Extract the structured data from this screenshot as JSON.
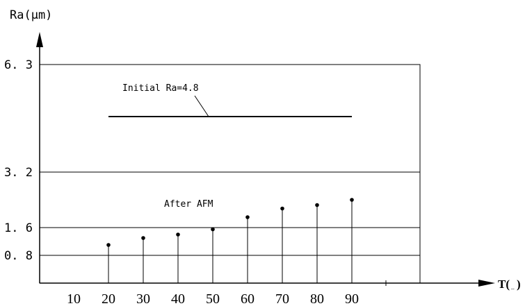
{
  "chart_data": {
    "type": "scatter",
    "title": "",
    "ylabel": "Ra(μm)",
    "xlabel": "T(--)",
    "y_ticks": [
      {
        "value": 0.8,
        "label": "0.8"
      },
      {
        "value": 1.6,
        "label": "1.6"
      },
      {
        "value": 3.2,
        "label": "3.2"
      },
      {
        "value": 6.3,
        "label": "6.3"
      }
    ],
    "x_ticks": [
      10,
      20,
      30,
      40,
      50,
      60,
      70,
      80,
      90
    ],
    "series": [
      {
        "name": "After AFM",
        "x": [
          20,
          30,
          40,
          50,
          60,
          70,
          80,
          90
        ],
        "y": [
          1.1,
          1.3,
          1.4,
          1.55,
          1.9,
          2.15,
          2.25,
          2.4
        ]
      }
    ],
    "reference_line": {
      "label": "Initial Ra=4.8",
      "value": 4.8,
      "x_start": 20,
      "x_end": 90
    },
    "annotation_after": "After AFM",
    "gridlines": true
  }
}
